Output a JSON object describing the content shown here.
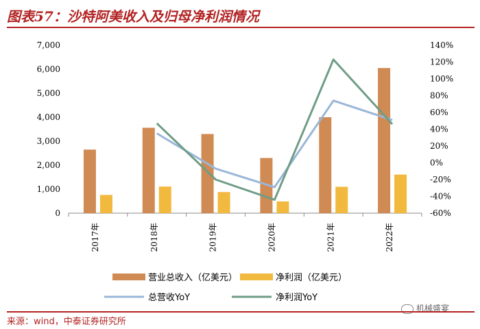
{
  "header": {
    "title": "图表57：沙特阿美收入及归母净利润情况"
  },
  "footer": {
    "source": "来源：wind，中泰证券研究所",
    "watermark": "机械盛宴"
  },
  "colors": {
    "revenue": "#d08a53",
    "profit": "#f2b93f",
    "revenue_yoy": "#9ab6d8",
    "profit_yoy": "#6f9c86",
    "accent": "#b22222"
  },
  "chart_data": {
    "type": "bar",
    "categories": [
      "2017年",
      "2018年",
      "2019年",
      "2020年",
      "2021年",
      "2022年"
    ],
    "series": [
      {
        "name": "营业总收入（亿美元）",
        "type": "bar",
        "axis": "left",
        "values": [
          2650,
          3560,
          3300,
          2300,
          4000,
          6050
        ]
      },
      {
        "name": "净利润（亿美元）",
        "type": "bar",
        "axis": "left",
        "values": [
          760,
          1110,
          880,
          490,
          1100,
          1610
        ]
      },
      {
        "name": "总营收YoY",
        "type": "line",
        "axis": "right",
        "values": [
          null,
          35,
          -7,
          -29,
          74,
          51
        ]
      },
      {
        "name": "净利润YoY",
        "type": "line",
        "axis": "right",
        "values": [
          null,
          47,
          -20,
          -44,
          123,
          46
        ]
      }
    ],
    "left_axis": {
      "ylim": [
        0,
        7000
      ],
      "ticks": [
        "0",
        "1,000",
        "2,000",
        "3,000",
        "4,000",
        "5,000",
        "6,000",
        "7,000"
      ]
    },
    "right_axis": {
      "ylim": [
        -60,
        140
      ],
      "ticks": [
        "-60%",
        "-40%",
        "-20%",
        "0%",
        "20%",
        "40%",
        "60%",
        "80%",
        "100%",
        "120%",
        "140%"
      ]
    },
    "grid": false,
    "legend": "bottom"
  }
}
